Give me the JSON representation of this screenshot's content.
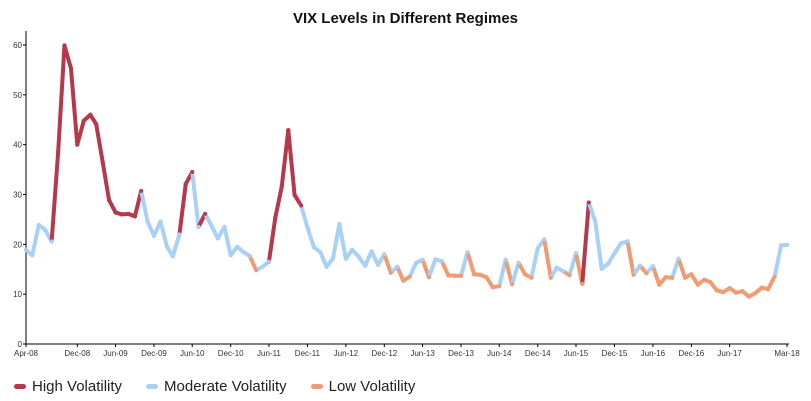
{
  "chart_data": {
    "type": "line",
    "title": "VIX Levels in Different Regimes",
    "xlabel": "",
    "ylabel": "",
    "ylim": [
      0,
      62
    ],
    "y_ticks": [
      0,
      10,
      20,
      30,
      40,
      50,
      60
    ],
    "x_range": [
      "2008-04-01",
      "2018-03-01"
    ],
    "x_tick_labels": [
      {
        "date": "2008-04-01",
        "label": "Apr-08"
      },
      {
        "date": "2008-12-01",
        "label": "Dec-08"
      },
      {
        "date": "2009-06-01",
        "label": "Jun-09"
      },
      {
        "date": "2009-12-01",
        "label": "Dec-09"
      },
      {
        "date": "2010-06-01",
        "label": "Jun-10"
      },
      {
        "date": "2010-12-01",
        "label": "Dec-10"
      },
      {
        "date": "2011-06-01",
        "label": "Jun-11"
      },
      {
        "date": "2011-12-01",
        "label": "Dec-11"
      },
      {
        "date": "2012-06-01",
        "label": "Jun-12"
      },
      {
        "date": "2012-12-01",
        "label": "Dec-12"
      },
      {
        "date": "2013-06-01",
        "label": "Jun-13"
      },
      {
        "date": "2013-12-01",
        "label": "Dec-13"
      },
      {
        "date": "2014-06-01",
        "label": "Jun-14"
      },
      {
        "date": "2014-12-01",
        "label": "Dec-14"
      },
      {
        "date": "2015-06-01",
        "label": "Jun-15"
      },
      {
        "date": "2015-12-01",
        "label": "Dec-15"
      },
      {
        "date": "2016-06-01",
        "label": "Jun-16"
      },
      {
        "date": "2016-12-01",
        "label": "Dec-16"
      },
      {
        "date": "2017-06-01",
        "label": "Jun-17"
      },
      {
        "date": "2018-03-01",
        "label": "Mar-18"
      }
    ],
    "grid": false,
    "legend_position": "bottom-left",
    "legend": [
      {
        "name": "High Volatility",
        "color": "#b5384b"
      },
      {
        "name": "Moderate Volatility",
        "color": "#a9d0f5"
      },
      {
        "name": "Low Volatility",
        "color": "#ef9c73"
      }
    ],
    "regime_colors": {
      "high": "#b5384b",
      "moderate": "#a9d0f5",
      "low": "#ef9c73"
    },
    "series": [
      {
        "date": "2008-04-01",
        "value": 18.9,
        "regime": "moderate"
      },
      {
        "date": "2008-05-01",
        "value": 17.8,
        "regime": "moderate"
      },
      {
        "date": "2008-06-01",
        "value": 23.9,
        "regime": "moderate"
      },
      {
        "date": "2008-07-01",
        "value": 22.9,
        "regime": "moderate"
      },
      {
        "date": "2008-08-01",
        "value": 20.6,
        "regime": "moderate"
      },
      {
        "date": "2008-09-01",
        "value": 38.5,
        "regime": "high"
      },
      {
        "date": "2008-10-01",
        "value": 59.9,
        "regime": "high"
      },
      {
        "date": "2008-11-01",
        "value": 55.3,
        "regime": "high"
      },
      {
        "date": "2008-12-01",
        "value": 40.0,
        "regime": "high"
      },
      {
        "date": "2009-01-01",
        "value": 44.8,
        "regime": "high"
      },
      {
        "date": "2009-02-01",
        "value": 46.0,
        "regime": "high"
      },
      {
        "date": "2009-03-01",
        "value": 44.1,
        "regime": "high"
      },
      {
        "date": "2009-04-01",
        "value": 36.5,
        "regime": "high"
      },
      {
        "date": "2009-05-01",
        "value": 28.9,
        "regime": "high"
      },
      {
        "date": "2009-06-01",
        "value": 26.4,
        "regime": "high"
      },
      {
        "date": "2009-07-01",
        "value": 26.0,
        "regime": "high"
      },
      {
        "date": "2009-08-01",
        "value": 26.1,
        "regime": "high"
      },
      {
        "date": "2009-09-01",
        "value": 25.6,
        "regime": "high"
      },
      {
        "date": "2009-10-01",
        "value": 30.7,
        "regime": "high"
      },
      {
        "date": "2009-11-01",
        "value": 24.5,
        "regime": "moderate"
      },
      {
        "date": "2009-12-01",
        "value": 21.7,
        "regime": "moderate"
      },
      {
        "date": "2010-01-01",
        "value": 24.6,
        "regime": "moderate"
      },
      {
        "date": "2010-02-01",
        "value": 19.5,
        "regime": "moderate"
      },
      {
        "date": "2010-03-01",
        "value": 17.6,
        "regime": "moderate"
      },
      {
        "date": "2010-04-01",
        "value": 22.0,
        "regime": "moderate"
      },
      {
        "date": "2010-05-01",
        "value": 32.1,
        "regime": "high"
      },
      {
        "date": "2010-06-01",
        "value": 34.5,
        "regime": "high"
      },
      {
        "date": "2010-07-01",
        "value": 23.5,
        "regime": "moderate"
      },
      {
        "date": "2010-08-01",
        "value": 26.1,
        "regime": "high"
      },
      {
        "date": "2010-09-01",
        "value": 23.7,
        "regime": "moderate"
      },
      {
        "date": "2010-10-01",
        "value": 21.2,
        "regime": "moderate"
      },
      {
        "date": "2010-11-01",
        "value": 23.5,
        "regime": "moderate"
      },
      {
        "date": "2010-12-01",
        "value": 17.8,
        "regime": "moderate"
      },
      {
        "date": "2011-01-01",
        "value": 19.5,
        "regime": "moderate"
      },
      {
        "date": "2011-02-01",
        "value": 18.4,
        "regime": "moderate"
      },
      {
        "date": "2011-03-01",
        "value": 17.7,
        "regime": "moderate"
      },
      {
        "date": "2011-04-01",
        "value": 14.8,
        "regime": "low"
      },
      {
        "date": "2011-05-01",
        "value": 15.5,
        "regime": "moderate"
      },
      {
        "date": "2011-06-01",
        "value": 16.5,
        "regime": "moderate"
      },
      {
        "date": "2011-07-01",
        "value": 25.3,
        "regime": "high"
      },
      {
        "date": "2011-08-01",
        "value": 31.6,
        "regime": "high"
      },
      {
        "date": "2011-09-01",
        "value": 42.9,
        "regime": "high"
      },
      {
        "date": "2011-10-01",
        "value": 29.9,
        "regime": "high"
      },
      {
        "date": "2011-11-01",
        "value": 27.8,
        "regime": "high"
      },
      {
        "date": "2011-12-01",
        "value": 23.4,
        "regime": "moderate"
      },
      {
        "date": "2012-01-01",
        "value": 19.4,
        "regime": "moderate"
      },
      {
        "date": "2012-02-01",
        "value": 18.4,
        "regime": "moderate"
      },
      {
        "date": "2012-03-01",
        "value": 15.5,
        "regime": "moderate"
      },
      {
        "date": "2012-04-01",
        "value": 17.2,
        "regime": "moderate"
      },
      {
        "date": "2012-05-01",
        "value": 24.1,
        "regime": "moderate"
      },
      {
        "date": "2012-06-01",
        "value": 17.1,
        "regime": "moderate"
      },
      {
        "date": "2012-07-01",
        "value": 18.9,
        "regime": "moderate"
      },
      {
        "date": "2012-08-01",
        "value": 17.5,
        "regime": "moderate"
      },
      {
        "date": "2012-09-01",
        "value": 15.7,
        "regime": "moderate"
      },
      {
        "date": "2012-10-01",
        "value": 18.6,
        "regime": "moderate"
      },
      {
        "date": "2012-11-01",
        "value": 15.9,
        "regime": "moderate"
      },
      {
        "date": "2012-12-01",
        "value": 18.0,
        "regime": "moderate"
      },
      {
        "date": "2013-01-01",
        "value": 14.3,
        "regime": "low"
      },
      {
        "date": "2013-02-01",
        "value": 15.5,
        "regime": "moderate"
      },
      {
        "date": "2013-03-01",
        "value": 12.7,
        "regime": "low"
      },
      {
        "date": "2013-04-01",
        "value": 13.5,
        "regime": "low"
      },
      {
        "date": "2013-05-01",
        "value": 16.3,
        "regime": "moderate"
      },
      {
        "date": "2013-06-01",
        "value": 16.9,
        "regime": "moderate"
      },
      {
        "date": "2013-07-01",
        "value": 13.4,
        "regime": "low"
      },
      {
        "date": "2013-08-01",
        "value": 17.0,
        "regime": "moderate"
      },
      {
        "date": "2013-09-01",
        "value": 16.6,
        "regime": "moderate"
      },
      {
        "date": "2013-10-01",
        "value": 13.8,
        "regime": "low"
      },
      {
        "date": "2013-11-01",
        "value": 13.7,
        "regime": "low"
      },
      {
        "date": "2013-12-01",
        "value": 13.7,
        "regime": "low"
      },
      {
        "date": "2014-01-01",
        "value": 18.4,
        "regime": "moderate"
      },
      {
        "date": "2014-02-01",
        "value": 14.0,
        "regime": "low"
      },
      {
        "date": "2014-03-01",
        "value": 13.9,
        "regime": "low"
      },
      {
        "date": "2014-04-01",
        "value": 13.4,
        "regime": "low"
      },
      {
        "date": "2014-05-01",
        "value": 11.4,
        "regime": "low"
      },
      {
        "date": "2014-06-01",
        "value": 11.6,
        "regime": "low"
      },
      {
        "date": "2014-07-01",
        "value": 16.9,
        "regime": "moderate"
      },
      {
        "date": "2014-08-01",
        "value": 12.0,
        "regime": "low"
      },
      {
        "date": "2014-09-01",
        "value": 16.3,
        "regime": "moderate"
      },
      {
        "date": "2014-10-01",
        "value": 14.0,
        "regime": "low"
      },
      {
        "date": "2014-11-01",
        "value": 13.3,
        "regime": "low"
      },
      {
        "date": "2014-12-01",
        "value": 19.2,
        "regime": "moderate"
      },
      {
        "date": "2015-01-01",
        "value": 21.0,
        "regime": "moderate"
      },
      {
        "date": "2015-02-01",
        "value": 13.3,
        "regime": "low"
      },
      {
        "date": "2015-03-01",
        "value": 15.3,
        "regime": "moderate"
      },
      {
        "date": "2015-04-01",
        "value": 14.6,
        "regime": "moderate"
      },
      {
        "date": "2015-05-01",
        "value": 13.8,
        "regime": "low"
      },
      {
        "date": "2015-06-01",
        "value": 18.2,
        "regime": "moderate"
      },
      {
        "date": "2015-07-01",
        "value": 12.1,
        "regime": "low"
      },
      {
        "date": "2015-08-01",
        "value": 28.4,
        "regime": "high"
      },
      {
        "date": "2015-09-01",
        "value": 24.5,
        "regime": "moderate"
      },
      {
        "date": "2015-10-01",
        "value": 15.1,
        "regime": "moderate"
      },
      {
        "date": "2015-11-01",
        "value": 16.1,
        "regime": "moderate"
      },
      {
        "date": "2015-12-01",
        "value": 18.2,
        "regime": "moderate"
      },
      {
        "date": "2016-01-01",
        "value": 20.2,
        "regime": "moderate"
      },
      {
        "date": "2016-02-01",
        "value": 20.6,
        "regime": "moderate"
      },
      {
        "date": "2016-03-01",
        "value": 13.9,
        "regime": "low"
      },
      {
        "date": "2016-04-01",
        "value": 15.7,
        "regime": "moderate"
      },
      {
        "date": "2016-05-01",
        "value": 14.2,
        "regime": "low"
      },
      {
        "date": "2016-06-01",
        "value": 15.6,
        "regime": "moderate"
      },
      {
        "date": "2016-07-01",
        "value": 11.9,
        "regime": "low"
      },
      {
        "date": "2016-08-01",
        "value": 13.4,
        "regime": "low"
      },
      {
        "date": "2016-09-01",
        "value": 13.3,
        "regime": "low"
      },
      {
        "date": "2016-10-01",
        "value": 17.1,
        "regime": "moderate"
      },
      {
        "date": "2016-11-01",
        "value": 13.3,
        "regime": "low"
      },
      {
        "date": "2016-12-01",
        "value": 14.0,
        "regime": "low"
      },
      {
        "date": "2017-01-01",
        "value": 11.9,
        "regime": "low"
      },
      {
        "date": "2017-02-01",
        "value": 12.9,
        "regime": "low"
      },
      {
        "date": "2017-03-01",
        "value": 12.4,
        "regime": "low"
      },
      {
        "date": "2017-04-01",
        "value": 10.8,
        "regime": "low"
      },
      {
        "date": "2017-05-01",
        "value": 10.4,
        "regime": "low"
      },
      {
        "date": "2017-06-01",
        "value": 11.2,
        "regime": "low"
      },
      {
        "date": "2017-07-01",
        "value": 10.3,
        "regime": "low"
      },
      {
        "date": "2017-08-01",
        "value": 10.6,
        "regime": "low"
      },
      {
        "date": "2017-09-01",
        "value": 9.5,
        "regime": "low"
      },
      {
        "date": "2017-10-01",
        "value": 10.2,
        "regime": "low"
      },
      {
        "date": "2017-11-01",
        "value": 11.3,
        "regime": "low"
      },
      {
        "date": "2017-12-01",
        "value": 11.0,
        "regime": "low"
      },
      {
        "date": "2018-01-01",
        "value": 13.5,
        "regime": "low"
      },
      {
        "date": "2018-02-01",
        "value": 19.8,
        "regime": "moderate"
      },
      {
        "date": "2018-03-01",
        "value": 19.9,
        "regime": "moderate"
      }
    ]
  }
}
